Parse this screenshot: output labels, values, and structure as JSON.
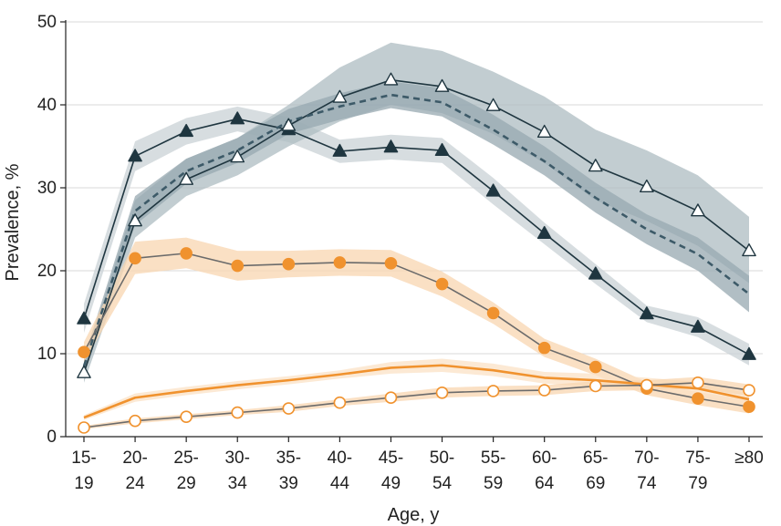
{
  "chart_data": {
    "type": "line",
    "xlabel": "Age, y",
    "ylabel": "Prevalence, %",
    "ylim": [
      0,
      50
    ],
    "yticks": [
      0,
      10,
      20,
      30,
      40,
      50
    ],
    "grid": "horizontal",
    "categories": [
      {
        "top": "15-",
        "bottom": "19"
      },
      {
        "top": "20-",
        "bottom": "24"
      },
      {
        "top": "25-",
        "bottom": "29"
      },
      {
        "top": "30-",
        "bottom": "34"
      },
      {
        "top": "35-",
        "bottom": "39"
      },
      {
        "top": "40-",
        "bottom": "44"
      },
      {
        "top": "45-",
        "bottom": "49"
      },
      {
        "top": "50-",
        "bottom": "54"
      },
      {
        "top": "55-",
        "bottom": "59"
      },
      {
        "top": "60-",
        "bottom": "64"
      },
      {
        "top": "65-",
        "bottom": "69"
      },
      {
        "top": "70-",
        "bottom": "74"
      },
      {
        "top": "75-",
        "bottom": "79"
      },
      {
        "top": "≥80",
        "bottom": ""
      }
    ],
    "series": [
      {
        "name": "dark-filled-triangle",
        "color": "#1f3640",
        "band_color": "#c9d2d6",
        "line_style": "solid",
        "marker": "triangle-filled",
        "values": [
          14.2,
          33.8,
          36.8,
          38.3,
          37.0,
          34.4,
          34.9,
          34.5,
          29.6,
          24.5,
          19.6,
          14.8,
          13.2,
          9.9
        ],
        "lower": [
          12.5,
          32.0,
          35.2,
          36.8,
          35.5,
          33.0,
          33.4,
          33.0,
          28.0,
          23.2,
          18.4,
          13.8,
          12.0,
          8.6
        ],
        "upper": [
          16.0,
          35.6,
          38.4,
          39.8,
          38.5,
          35.8,
          36.4,
          36.0,
          31.2,
          25.8,
          20.8,
          15.8,
          14.4,
          11.2
        ]
      },
      {
        "name": "dark-open-triangle",
        "color": "#1f3640",
        "band_color": "#aebcc2",
        "line_style": "solid",
        "marker": "triangle-open",
        "values": [
          7.7,
          26.0,
          31.0,
          33.7,
          37.5,
          40.9,
          43.0,
          42.2,
          39.9,
          36.7,
          32.6,
          30.1,
          27.2,
          22.4
        ],
        "lower": [
          6.5,
          24.0,
          29.0,
          31.5,
          35.0,
          38.0,
          40.0,
          39.0,
          36.5,
          33.0,
          28.5,
          26.0,
          23.0,
          18.5
        ],
        "upper": [
          9.0,
          28.5,
          33.5,
          36.0,
          40.0,
          44.5,
          47.5,
          46.5,
          44.0,
          41.0,
          37.0,
          34.5,
          31.5,
          26.5
        ]
      },
      {
        "name": "dark-dashed-line",
        "color": "#3d5a68",
        "band_color": "#97a8b0",
        "line_style": "dashed",
        "marker": "none",
        "values": [
          8.5,
          27.2,
          32.0,
          34.5,
          38.0,
          39.8,
          41.2,
          40.3,
          37.0,
          33.2,
          28.8,
          25.0,
          22.0,
          17.2
        ],
        "lower": [
          7.5,
          25.5,
          30.5,
          33.0,
          36.5,
          38.2,
          39.6,
          38.6,
          35.2,
          31.5,
          27.0,
          23.2,
          20.0,
          15.0
        ],
        "upper": [
          9.5,
          29.0,
          33.5,
          36.0,
          39.5,
          41.4,
          42.8,
          42.0,
          38.8,
          35.0,
          30.6,
          26.8,
          24.0,
          19.4
        ]
      },
      {
        "name": "orange-filled-circle",
        "color": "#f0922e",
        "line_color": "#6b6b6b",
        "band_color": "#f8d5b0",
        "line_style": "solid",
        "marker": "circle-filled",
        "values": [
          10.2,
          21.5,
          22.1,
          20.6,
          20.8,
          21.0,
          20.9,
          18.4,
          14.9,
          10.7,
          8.4,
          5.8,
          4.6,
          3.6
        ],
        "lower": [
          9.0,
          19.6,
          20.3,
          18.8,
          19.2,
          19.4,
          19.3,
          16.9,
          13.6,
          9.6,
          7.4,
          5.0,
          3.8,
          2.8
        ],
        "upper": [
          11.4,
          23.5,
          24.0,
          22.4,
          22.4,
          22.6,
          22.5,
          19.9,
          16.2,
          11.8,
          9.4,
          6.6,
          5.4,
          4.4
        ]
      },
      {
        "name": "orange-solid-line",
        "color": "#f0922e",
        "band_color": "#fbe2c6",
        "line_style": "solid",
        "marker": "none",
        "values": [
          2.3,
          4.7,
          5.5,
          6.2,
          6.8,
          7.5,
          8.3,
          8.6,
          8.0,
          7.1,
          6.8,
          6.3,
          5.8,
          4.5
        ],
        "lower": [
          2.0,
          4.2,
          5.0,
          5.7,
          6.3,
          7.0,
          7.6,
          7.8,
          7.3,
          6.4,
          6.0,
          5.5,
          5.0,
          3.8
        ],
        "upper": [
          2.6,
          5.2,
          6.0,
          6.7,
          7.3,
          8.0,
          9.0,
          9.4,
          8.8,
          7.8,
          7.6,
          7.1,
          6.6,
          5.2
        ]
      },
      {
        "name": "orange-open-circle",
        "color": "#f0922e",
        "line_color": "#6b6b6b",
        "band_color": "#f8d5b0",
        "line_style": "solid",
        "marker": "circle-open",
        "values": [
          1.1,
          1.9,
          2.4,
          2.9,
          3.4,
          4.1,
          4.7,
          5.3,
          5.5,
          5.6,
          6.1,
          6.2,
          6.5,
          5.6
        ],
        "lower": [
          0.9,
          1.6,
          2.1,
          2.6,
          3.0,
          3.7,
          4.2,
          4.7,
          4.9,
          5.0,
          5.5,
          5.6,
          5.8,
          4.9
        ],
        "upper": [
          1.3,
          2.2,
          2.7,
          3.2,
          3.8,
          4.5,
          5.2,
          5.9,
          6.1,
          6.2,
          6.7,
          6.8,
          7.2,
          6.3
        ]
      }
    ]
  }
}
